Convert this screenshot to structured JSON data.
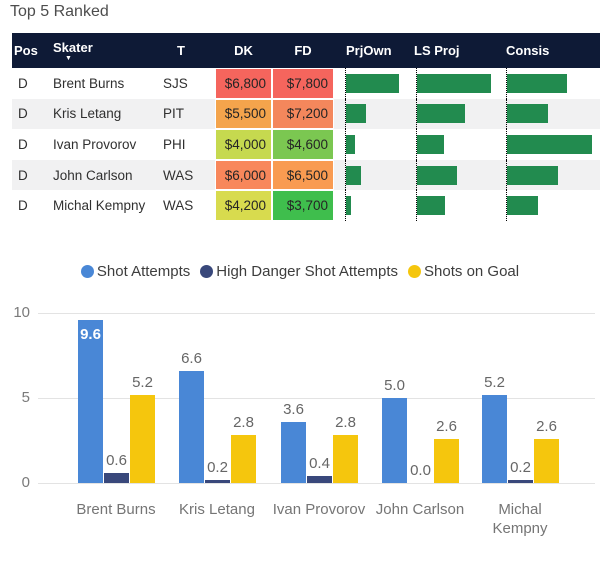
{
  "title": "Top 5 Ranked",
  "table": {
    "columns": [
      "Pos",
      "Skater",
      "T",
      "DK",
      "FD",
      "PrjOwn",
      "LS Proj",
      "Consis"
    ],
    "sorted_column": "Skater",
    "sort_icon": "▼",
    "header_bg": "#0e1a36",
    "row_alt_bg": "#f1f1f2",
    "databar_color": "#228b4f",
    "rows": [
      {
        "pos": "D",
        "skater": "Brent Burns",
        "team": "SJS",
        "dk": "$6,800",
        "dk_color": "#f5655d",
        "fd": "$7,800",
        "fd_color": "#f5655d",
        "prjown_pct": 81,
        "lsproj_pct": 86,
        "consis_pct": 64
      },
      {
        "pos": "D",
        "skater": "Kris Letang",
        "team": "PIT",
        "dk": "$5,500",
        "dk_color": "#f4a44c",
        "fd": "$7,200",
        "fd_color": "#f4875c",
        "prjown_pct": 30,
        "lsproj_pct": 56,
        "consis_pct": 44
      },
      {
        "pos": "D",
        "skater": "Ivan Provorov",
        "team": "PHI",
        "dk": "$4,000",
        "dk_color": "#c6d94f",
        "fd": "$4,600",
        "fd_color": "#7bc751",
        "prjown_pct": 13,
        "lsproj_pct": 31,
        "consis_pct": 91
      },
      {
        "pos": "D",
        "skater": "John Carlson",
        "team": "WAS",
        "dk": "$6,000",
        "dk_color": "#f8875b",
        "fd": "$6,500",
        "fd_color": "#f99b51",
        "prjown_pct": 22,
        "lsproj_pct": 46,
        "consis_pct": 55
      },
      {
        "pos": "D",
        "skater": "Michal Kempny",
        "team": "WAS",
        "dk": "$4,200",
        "dk_color": "#d8db4e",
        "fd": "$3,700",
        "fd_color": "#3fbe4d",
        "prjown_pct": 7,
        "lsproj_pct": 32,
        "consis_pct": 33
      }
    ]
  },
  "chart_data": {
    "type": "bar",
    "categories": [
      "Brent Burns",
      "Kris Letang",
      "Ivan Provorov",
      "John Carlson",
      "Michal Kempny"
    ],
    "series": [
      {
        "name": "Shot Attempts",
        "color": "#4987d6",
        "values": [
          9.6,
          6.6,
          3.6,
          5.0,
          5.2
        ]
      },
      {
        "name": "High Danger Shot Attempts",
        "color": "#39487b",
        "values": [
          0.6,
          0.2,
          0.4,
          0.0,
          0.2
        ]
      },
      {
        "name": "Shots on Goal",
        "color": "#f5c60d",
        "values": [
          5.2,
          2.8,
          2.8,
          2.6,
          2.6
        ]
      }
    ],
    "ylim": [
      0,
      10
    ],
    "yticks": [
      0,
      5,
      10
    ],
    "grid": true,
    "legend_position": "top",
    "data_labels": true
  }
}
